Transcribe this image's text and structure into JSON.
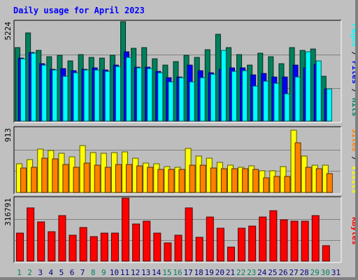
{
  "chart_data": {
    "type": "bar",
    "title": "Daily usage for April 2023",
    "colors": {
      "background": "#c0c0c0",
      "panel": "#bdbdbd",
      "hits": "#00805c",
      "files": "#0000ff",
      "pages": "#00ffff",
      "visits": "#ffff00",
      "sites": "#ff8000",
      "kbytes": "#ff0000",
      "weekend_label": "#00805c",
      "weekday_label": "#000080"
    },
    "days": [
      "1",
      "2",
      "3",
      "4",
      "5",
      "6",
      "7",
      "8",
      "9",
      "10",
      "11",
      "12",
      "13",
      "14",
      "15",
      "16",
      "17",
      "18",
      "19",
      "20",
      "21",
      "22",
      "23",
      "24",
      "25",
      "26",
      "27",
      "28",
      "29",
      "30",
      "31"
    ],
    "weekend_days": [
      "1",
      "2",
      "8",
      "9",
      "15",
      "16",
      "22",
      "23",
      "29",
      "30"
    ],
    "top_panel": {
      "ymax_label": "5224",
      "ymax": 5224,
      "legend": [
        {
          "name": "Hits",
          "color": "#00805c"
        },
        {
          "name": "Files",
          "color": "#0000ff"
        },
        {
          "name": "Pages",
          "color": "#00ffff"
        }
      ],
      "series": [
        {
          "name": "Hits",
          "values": [
            3850,
            4630,
            3720,
            3380,
            3450,
            3150,
            3500,
            3350,
            3320,
            3450,
            5224,
            3820,
            3850,
            3280,
            2950,
            3130,
            3450,
            3330,
            3770,
            4560,
            3850,
            3500,
            2950,
            3560,
            3380,
            3000,
            3850,
            3730,
            3800,
            2340
          ]
        },
        {
          "name": "Files",
          "values": [
            3320,
            3620,
            3000,
            2730,
            2770,
            2640,
            2730,
            2780,
            2670,
            2950,
            3630,
            2830,
            2840,
            2600,
            2270,
            2300,
            2930,
            2650,
            2550,
            2740,
            2790,
            2790,
            2430,
            2510,
            2330,
            2300,
            2930,
            2780,
            2990,
            1700
          ]
        },
        {
          "name": "Pages",
          "values": [
            3270,
            3560,
            2950,
            2670,
            2360,
            2530,
            2670,
            2700,
            2620,
            2870,
            3350,
            2800,
            2750,
            2530,
            2050,
            2280,
            2060,
            2280,
            2450,
            3720,
            2600,
            2640,
            1830,
            2110,
            2000,
            1450,
            2320,
            3650,
            3150,
            1700
          ]
        }
      ]
    },
    "middle_panel": {
      "ymax_label": "913",
      "ymax": 913,
      "legend": [
        {
          "name": "Visits",
          "color": "#ffff00"
        },
        {
          "name": "Sites",
          "color": "#ff8000"
        }
      ],
      "series": [
        {
          "name": "Visits",
          "values": [
            410,
            470,
            620,
            600,
            560,
            510,
            660,
            570,
            560,
            570,
            580,
            490,
            420,
            410,
            370,
            360,
            630,
            520,
            490,
            430,
            390,
            360,
            380,
            310,
            310,
            370,
            880,
            520,
            390,
            390
          ]
        },
        {
          "name": "Sites",
          "values": [
            350,
            360,
            490,
            480,
            400,
            360,
            420,
            390,
            360,
            400,
            400,
            380,
            360,
            330,
            330,
            330,
            390,
            390,
            350,
            340,
            340,
            340,
            330,
            210,
            230,
            230,
            700,
            360,
            340,
            270
          ]
        }
      ]
    },
    "bottom_panel": {
      "ymax_label": "316791",
      "ymax": 316791,
      "legend": [
        {
          "name": "KBytes",
          "color": "#ff0000"
        }
      ],
      "series": [
        {
          "name": "KBytes",
          "values": [
            140000,
            267000,
            198000,
            149000,
            230000,
            131000,
            170000,
            124000,
            140000,
            140000,
            316791,
            187000,
            199000,
            142000,
            91000,
            131000,
            266000,
            120000,
            222000,
            167000,
            72000,
            166000,
            175000,
            223000,
            252000,
            206000,
            201000,
            201000,
            230000,
            78000
          ]
        }
      ]
    }
  }
}
